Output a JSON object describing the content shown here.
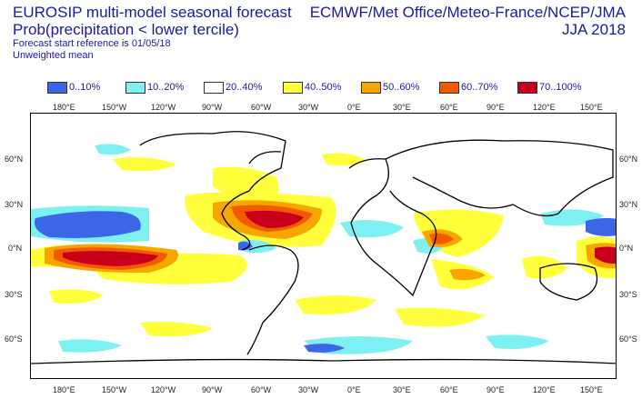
{
  "header": {
    "title_line1": "EUROSIP multi-model seasonal forecast",
    "title_line2": "Prob(precipitation < lower tercile)",
    "forecast_ref": "Forecast start reference is 01/05/18",
    "weighting": "Unweighted mean",
    "centres": "ECMWF/Met Office/Meteo-France/NCEP/JMA",
    "season": "JJA 2018"
  },
  "legend": [
    {
      "label": "0..10%",
      "color": "#3b66e8"
    },
    {
      "label": "10..20%",
      "color": "#7ff0f2"
    },
    {
      "label": "20..40%",
      "color": "#ffffff"
    },
    {
      "label": "40..50%",
      "color": "#ffff3c"
    },
    {
      "label": "50..60%",
      "color": "#f7a600"
    },
    {
      "label": "60..70%",
      "color": "#f25a00"
    },
    {
      "label": "70..100%",
      "color": "#c8001e"
    }
  ],
  "axes": {
    "lon_labels": [
      "180°E",
      "150°W",
      "120°W",
      "90°W",
      "60°W",
      "30°W",
      "0°E",
      "30°E",
      "60°E",
      "90°E",
      "120°E",
      "150°E"
    ],
    "lat_labels": [
      "60°N",
      "30°N",
      "0°N",
      "30°S",
      "60°S"
    ]
  },
  "map": {
    "ocean_color": "#ffffff",
    "coast_color": "#000000"
  }
}
